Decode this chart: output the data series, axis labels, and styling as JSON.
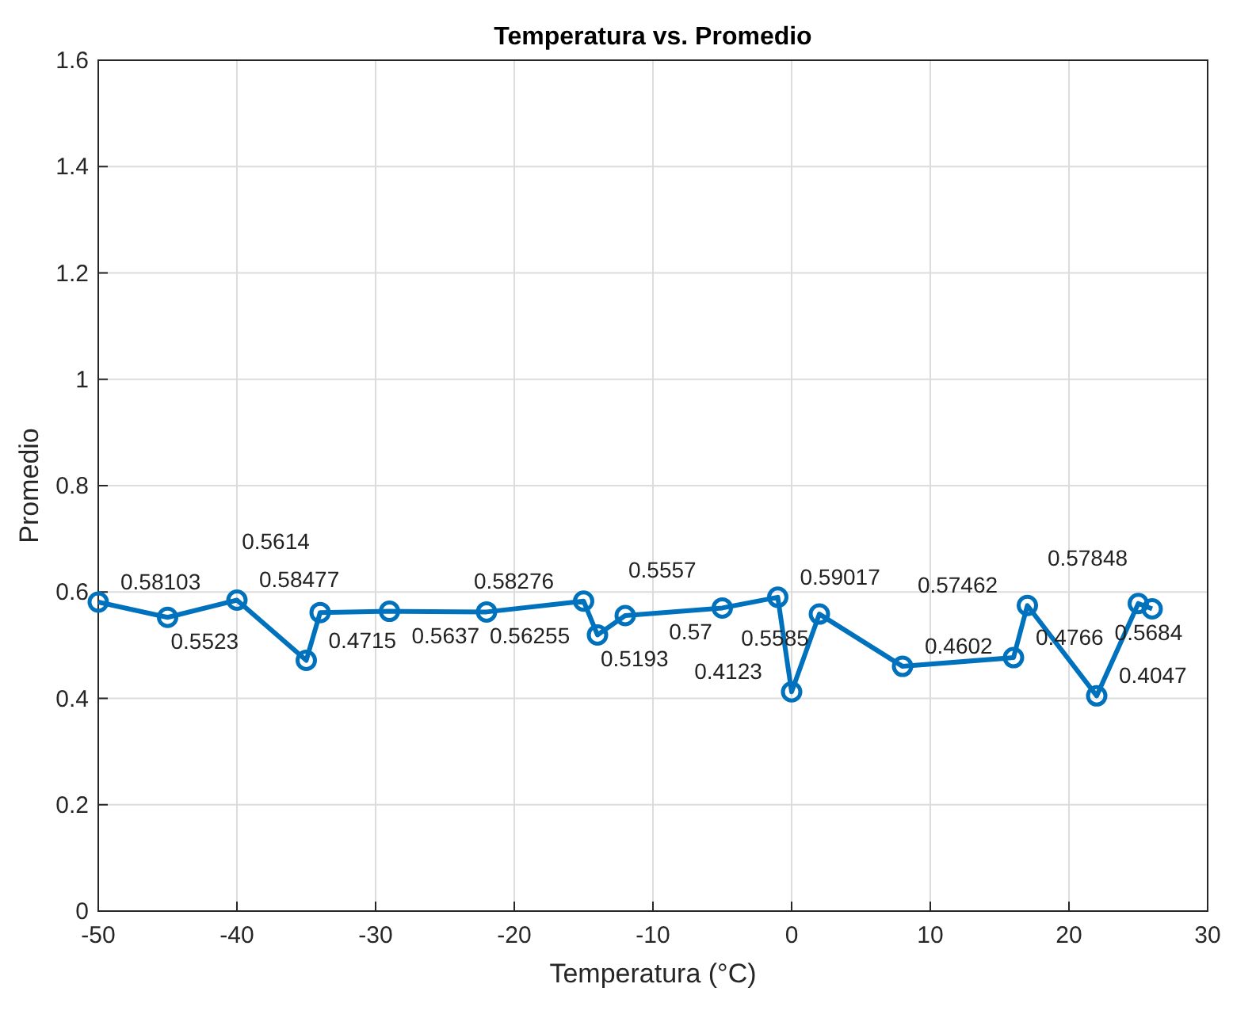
{
  "chart_data": {
    "type": "line",
    "title": "Temperatura vs. Promedio",
    "xlabel": "Temperatura (°C)",
    "ylabel": "Promedio",
    "x": [
      -50,
      -45,
      -40,
      -35,
      -34,
      -29,
      -22,
      -15,
      -14,
      -12,
      -5,
      -1,
      0,
      2,
      8,
      16,
      17,
      22,
      25,
      26
    ],
    "series": [
      {
        "color": "#0072bd",
        "values": [
          0.58103,
          0.5523,
          0.58477,
          0.4715,
          0.5614,
          0.5637,
          0.56255,
          0.58276,
          0.5193,
          0.5557,
          0.57,
          0.59017,
          0.4123,
          0.5585,
          0.4602,
          0.4766,
          0.57462,
          0.4047,
          0.57848,
          0.5684
        ]
      }
    ],
    "xlim": [
      -50,
      30
    ],
    "xticks": [
      -50,
      -40,
      -30,
      -20,
      -10,
      0,
      10,
      20,
      30
    ],
    "ylim": [
      0,
      1.6
    ],
    "yticks": [
      0,
      0.2,
      0.4,
      0.6,
      0.8,
      1,
      1.2,
      1.4,
      1.6
    ],
    "grid": true,
    "marker": "circle",
    "line_style": "solid",
    "data_labels": true
  }
}
